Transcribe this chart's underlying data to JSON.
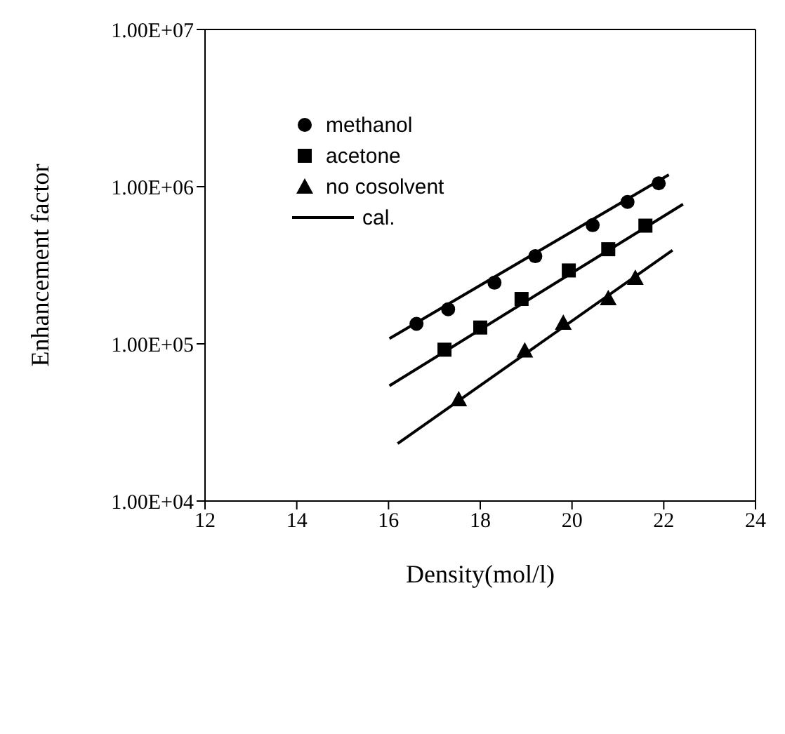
{
  "chart_data": {
    "type": "scatter",
    "xlabel": "Density(mol/l)",
    "ylabel": "Enhancement factor",
    "xlim": [
      12,
      24
    ],
    "xticks": [
      12,
      14,
      16,
      18,
      20,
      22,
      24
    ],
    "ylim": [
      10000,
      10000000
    ],
    "yticks": [
      {
        "value": 10000,
        "label": "1.00E+04"
      },
      {
        "value": 100000,
        "label": "1.00E+05"
      },
      {
        "value": 1000000,
        "label": "1.00E+06"
      },
      {
        "value": 10000000,
        "label": "1.00E+07"
      }
    ],
    "log": "y",
    "legend": "top left",
    "series": [
      {
        "name": "methanol",
        "marker": "circle",
        "color": "#000000",
        "x": [
          16.61,
          17.3,
          18.31,
          19.2,
          20.45,
          21.21,
          21.89
        ],
        "values": [
          134000,
          166000,
          245000,
          361000,
          569000,
          800000,
          1050000
        ]
      },
      {
        "name": "acetone",
        "marker": "square",
        "color": "#000000",
        "x": [
          17.22,
          18.0,
          18.9,
          19.93,
          20.79,
          21.6
        ],
        "values": [
          91800,
          127000,
          193000,
          293000,
          400000,
          565000
        ]
      },
      {
        "name": "no cosolvent",
        "marker": "triangle",
        "color": "#000000",
        "x": [
          17.53,
          18.97,
          19.81,
          20.79,
          21.38
        ],
        "values": [
          44400,
          90700,
          136000,
          195000,
          263000
        ]
      },
      {
        "name": "cal.",
        "type": "line",
        "marker": "none",
        "line_style": "solid",
        "color": "#000000",
        "x": [
          16.02,
          22.11
        ],
        "values": [
          108000,
          1190000
        ]
      },
      {
        "type": "line",
        "marker": "none",
        "line_style": "solid",
        "color": "#000000",
        "x": [
          16.02,
          22.42
        ],
        "values": [
          54100,
          773000
        ]
      },
      {
        "type": "line",
        "marker": "none",
        "line_style": "solid",
        "color": "#000000",
        "x": [
          16.2,
          22.19
        ],
        "values": [
          23200,
          394000
        ]
      }
    ]
  }
}
